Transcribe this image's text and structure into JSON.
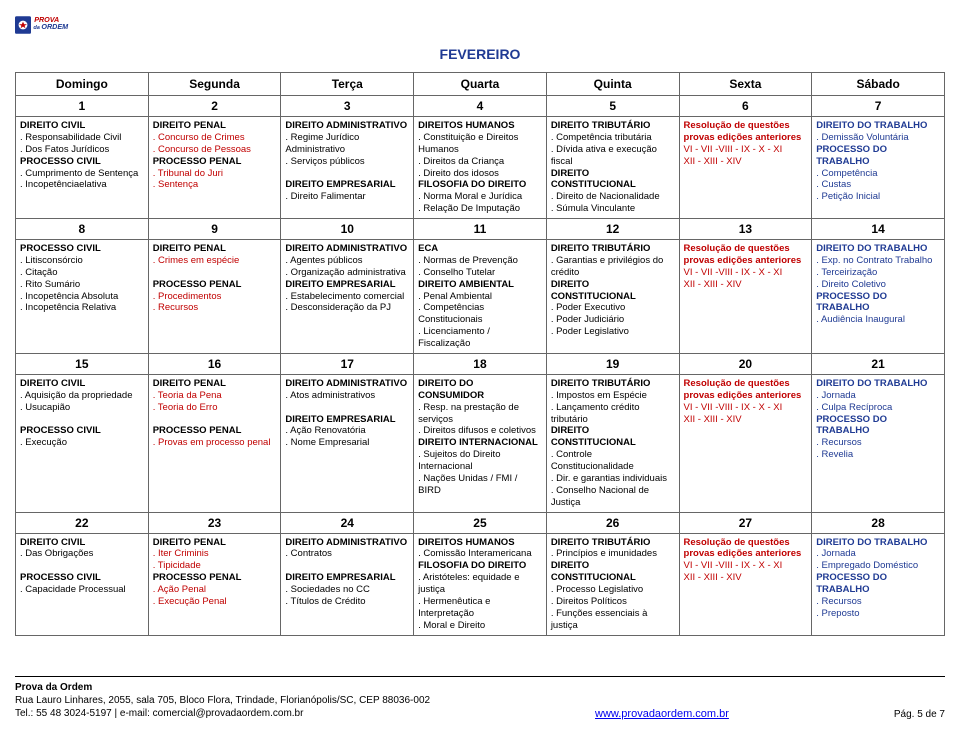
{
  "month": "FEVEREIRO",
  "days": [
    "Domingo",
    "Segunda",
    "Terça",
    "Quarta",
    "Quinta",
    "Sexta",
    "Sábado"
  ],
  "footer": {
    "org": "Prova da Ordem",
    "addr": "Rua Lauro Linhares, 2055, sala 705, Bloco Flora, Trindade, Florianópolis/SC, CEP 88036-002",
    "tel": "Tel.: 55 48 3024-5197 | e-mail: comercial@provadaordem.com.br",
    "url": "www.provadaordem.com.br",
    "page": "Pág. 5 de 7"
  },
  "weeks": [
    {
      "nums": [
        "1",
        "2",
        "3",
        "4",
        "5",
        "6",
        "7"
      ],
      "cells": [
        [
          [
            "hdr",
            "DIREITO CIVIL"
          ],
          [
            "",
            ". Responsabilidade Civil"
          ],
          [
            "",
            ". Dos Fatos Jurídicos"
          ],
          [
            "hdr",
            "PROCESSO CIVIL"
          ],
          [
            "",
            ". Cumprimento de Sentença"
          ],
          [
            "",
            ". Incopetênciaelativa"
          ]
        ],
        [
          [
            "hdr",
            "DIREITO PENAL"
          ],
          [
            "red",
            ". Concurso de Crimes"
          ],
          [
            "red",
            ". Concurso de Pessoas"
          ],
          [
            "hdr",
            "PROCESSO PENAL"
          ],
          [
            "red",
            ". Tribunal do Juri"
          ],
          [
            "red",
            ". Sentença"
          ]
        ],
        [
          [
            "hdr",
            "DIREITO ADMINISTRATIVO"
          ],
          [
            "",
            ". Regime Jurídico Administrativo"
          ],
          [
            "",
            ". Serviços públicos"
          ],
          [
            "",
            ""
          ],
          [
            "hdr",
            "DIREITO EMPRESARIAL"
          ],
          [
            "",
            ". Direito Falimentar"
          ]
        ],
        [
          [
            "hdr",
            "DIREITOS HUMANOS"
          ],
          [
            "",
            ". Constituição e Direitos Humanos"
          ],
          [
            "",
            ". Direitos da Criança"
          ],
          [
            "",
            ". Direito dos idosos"
          ],
          [
            "hdr",
            "FILOSOFIA DO DIREITO"
          ],
          [
            "",
            ". Norma Moral e Jurídica"
          ],
          [
            "",
            ". Relação De Imputação"
          ]
        ],
        [
          [
            "hdr",
            "DIREITO TRIBUTÁRIO"
          ],
          [
            "",
            ". Competência tributária"
          ],
          [
            "",
            ". Dívida ativa e execução fiscal"
          ],
          [
            "hdr",
            "DIREITO CONSTITUCIONAL"
          ],
          [
            "",
            ". Direito de Nacionalidade"
          ],
          [
            "",
            ". Súmula Vinculante"
          ]
        ],
        [
          [
            "red-b",
            "Resolução de questões"
          ],
          [
            "red-b",
            "provas edições anteriores"
          ],
          [
            "red",
            "VI - VII -VIII - IX - X - XI"
          ],
          [
            "red",
            "XII - XIII - XIV"
          ]
        ],
        [
          [
            "hdr-blue",
            "DIREITO DO TRABALHO"
          ],
          [
            "blue",
            ". Demissão Voluntária"
          ],
          [
            "hdr-blue",
            "PROCESSO DO TRABALHO"
          ],
          [
            "blue",
            ". Competência"
          ],
          [
            "blue",
            ". Custas"
          ],
          [
            "blue",
            ". Petição Inicial"
          ]
        ]
      ]
    },
    {
      "nums": [
        "8",
        "9",
        "10",
        "11",
        "12",
        "13",
        "14"
      ],
      "cells": [
        [
          [
            "hdr",
            "PROCESSO CIVIL"
          ],
          [
            "",
            ". Litisconsórcio"
          ],
          [
            "",
            ". Citação"
          ],
          [
            "",
            ". Rito Sumário"
          ],
          [
            "",
            ". Incopetência Absoluta"
          ],
          [
            "",
            ". Incopetência Relativa"
          ]
        ],
        [
          [
            "hdr",
            "DIREITO PENAL"
          ],
          [
            "red",
            ". Crimes em espécie"
          ],
          [
            "",
            ""
          ],
          [
            "hdr",
            "PROCESSO PENAL"
          ],
          [
            "red",
            ". Procedimentos"
          ],
          [
            "red",
            ". Recursos"
          ]
        ],
        [
          [
            "hdr",
            "DIREITO ADMINISTRATIVO"
          ],
          [
            "",
            ". Agentes públicos"
          ],
          [
            "",
            ". Organização administrativa"
          ],
          [
            "hdr",
            "DIREITO EMPRESARIAL"
          ],
          [
            "",
            ". Estabelecimento comercial"
          ],
          [
            "",
            ". Desconsideração da PJ"
          ]
        ],
        [
          [
            "hdr",
            "ECA"
          ],
          [
            "",
            ". Normas de Prevenção"
          ],
          [
            "",
            ". Conselho Tutelar"
          ],
          [
            "hdr",
            "DIREITO AMBIENTAL"
          ],
          [
            "",
            ". Penal Ambiental"
          ],
          [
            "",
            ". Competências Constitucionais"
          ],
          [
            "",
            ". Licenciamento / Fiscalização"
          ]
        ],
        [
          [
            "hdr",
            "DIREITO TRIBUTÁRIO"
          ],
          [
            "",
            ". Garantias e privilégios do crédito"
          ],
          [
            "hdr",
            "DIREITO CONSTITUCIONAL"
          ],
          [
            "",
            ". Poder Executivo"
          ],
          [
            "",
            ". Poder Judiciário"
          ],
          [
            "",
            ". Poder Legislativo"
          ]
        ],
        [
          [
            "red-b",
            "Resolução de questões"
          ],
          [
            "red-b",
            "provas edições anteriores"
          ],
          [
            "red",
            "VI - VII -VIII - IX - X - XI"
          ],
          [
            "red",
            "XII - XIII - XIV"
          ]
        ],
        [
          [
            "hdr-blue",
            "DIREITO DO TRABALHO"
          ],
          [
            "blue",
            ". Exp. no Contrato Trabalho"
          ],
          [
            "blue",
            ". Terceirização"
          ],
          [
            "blue",
            ". Direito Coletivo"
          ],
          [
            "hdr-blue",
            "PROCESSO DO TRABALHO"
          ],
          [
            "blue",
            ". Audiência Inaugural"
          ]
        ]
      ]
    },
    {
      "nums": [
        "15",
        "16",
        "17",
        "18",
        "19",
        "20",
        "21"
      ],
      "cells": [
        [
          [
            "hdr",
            "DIREITO CIVIL"
          ],
          [
            "",
            ". Aquisição da propriedade"
          ],
          [
            "",
            ". Usucapião"
          ],
          [
            "",
            ""
          ],
          [
            "hdr",
            "PROCESSO CIVIL"
          ],
          [
            "",
            ". Execução"
          ]
        ],
        [
          [
            "hdr",
            "DIREITO PENAL"
          ],
          [
            "red",
            ". Teoria da Pena"
          ],
          [
            "red",
            ". Teoria do Erro"
          ],
          [
            "",
            ""
          ],
          [
            "hdr",
            "PROCESSO PENAL"
          ],
          [
            "red",
            ". Provas em processo penal"
          ]
        ],
        [
          [
            "hdr",
            "DIREITO ADMINISTRATIVO"
          ],
          [
            "",
            ". Atos administrativos"
          ],
          [
            "",
            ""
          ],
          [
            "hdr",
            "DIREITO EMPRESARIAL"
          ],
          [
            "",
            ". Ação Renovatória"
          ],
          [
            "",
            ". Nome Empresarial"
          ]
        ],
        [
          [
            "hdr",
            "DIREITO DO CONSUMIDOR"
          ],
          [
            "",
            ". Resp. na prestação de serviços"
          ],
          [
            "",
            ". Direitos difusos e coletivos"
          ],
          [
            "hdr",
            "DIREITO INTERNACIONAL"
          ],
          [
            "",
            ". Sujeitos do Direito Internacional"
          ],
          [
            "",
            ". Nações Unidas / FMI / BIRD"
          ]
        ],
        [
          [
            "hdr",
            "DIREITO TRIBUTÁRIO"
          ],
          [
            "",
            ". Impostos em Espécie"
          ],
          [
            "",
            ". Lançamento crédito tributário"
          ],
          [
            "hdr",
            "DIREITO CONSTITUCIONAL"
          ],
          [
            "",
            ". Controle Constitucionalidade"
          ],
          [
            "",
            ". Dir. e garantias individuais"
          ],
          [
            "",
            ". Conselho Nacional de Justiça"
          ]
        ],
        [
          [
            "red-b",
            "Resolução de questões"
          ],
          [
            "red-b",
            "provas edições anteriores"
          ],
          [
            "red",
            "VI - VII -VIII - IX - X - XI"
          ],
          [
            "red",
            "XII - XIII - XIV"
          ]
        ],
        [
          [
            "hdr-blue",
            "DIREITO DO TRABALHO"
          ],
          [
            "blue",
            ". Jornada"
          ],
          [
            "blue",
            ". Culpa Recíproca"
          ],
          [
            "hdr-blue",
            "PROCESSO DO TRABALHO"
          ],
          [
            "blue",
            ". Recursos"
          ],
          [
            "blue",
            ". Revelia"
          ]
        ]
      ]
    },
    {
      "nums": [
        "22",
        "23",
        "24",
        "25",
        "26",
        "27",
        "28"
      ],
      "cells": [
        [
          [
            "hdr",
            "DIREITO CIVIL"
          ],
          [
            "",
            ". Das Obrigações"
          ],
          [
            "",
            ""
          ],
          [
            "hdr",
            "PROCESSO CIVIL"
          ],
          [
            "",
            ". Capacidade Processual"
          ]
        ],
        [
          [
            "hdr",
            "DIREITO PENAL"
          ],
          [
            "red",
            ". Iter Criminis"
          ],
          [
            "red",
            ". Tipicidade"
          ],
          [
            "hdr",
            "PROCESSO PENAL"
          ],
          [
            "red",
            ". Ação Penal"
          ],
          [
            "red",
            ". Execução Penal"
          ]
        ],
        [
          [
            "hdr",
            "DIREITO ADMINISTRATIVO"
          ],
          [
            "",
            ". Contratos"
          ],
          [
            "",
            ""
          ],
          [
            "hdr",
            "DIREITO EMPRESARIAL"
          ],
          [
            "",
            ". Sociedades no CC"
          ],
          [
            "",
            ". Títulos de Crédito"
          ]
        ],
        [
          [
            "hdr",
            "DIREITOS HUMANOS"
          ],
          [
            "",
            ". Comissão Interamericana"
          ],
          [
            "hdr",
            "FILOSOFIA DO DIREITO"
          ],
          [
            "",
            ". Aristóteles: equidade e justiça"
          ],
          [
            "",
            ". Hermenêutica e Interpretação"
          ],
          [
            "",
            ". Moral e Direito"
          ]
        ],
        [
          [
            "hdr",
            "DIREITO TRIBUTÁRIO"
          ],
          [
            "",
            ". Princípios e imunidades"
          ],
          [
            "hdr",
            "DIREITO CONSTITUCIONAL"
          ],
          [
            "",
            ". Processo Legislativo"
          ],
          [
            "",
            ". Direitos Políticos"
          ],
          [
            "",
            ". Funções essenciais à justiça"
          ]
        ],
        [
          [
            "red-b",
            "Resolução de questões"
          ],
          [
            "red-b",
            "provas edições anteriores"
          ],
          [
            "red",
            "VI - VII -VIII - IX - X - XI"
          ],
          [
            "red",
            "XII - XIII - XIV"
          ]
        ],
        [
          [
            "hdr-blue",
            "DIREITO DO TRABALHO"
          ],
          [
            "blue",
            ". Jornada"
          ],
          [
            "blue",
            ". Empregado Doméstico"
          ],
          [
            "hdr-blue",
            "PROCESSO DO TRABALHO"
          ],
          [
            "blue",
            ". Recursos"
          ],
          [
            "blue",
            ". Preposto"
          ]
        ]
      ]
    }
  ]
}
